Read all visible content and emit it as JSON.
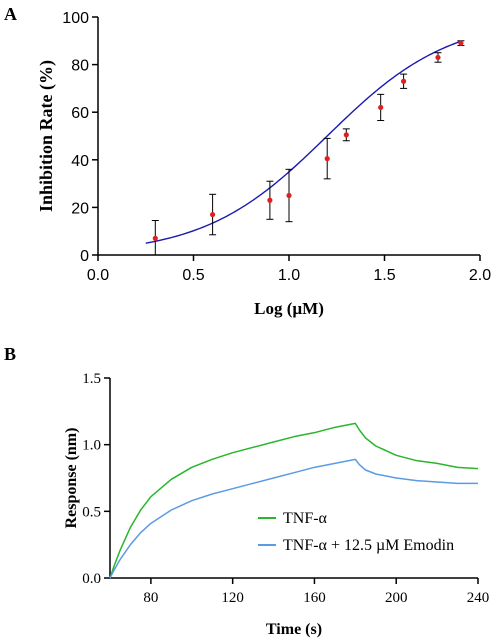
{
  "chart_data": [
    {
      "panel_label": "A",
      "type": "scatter",
      "xlabel": "Log (µM)",
      "ylabel": "Inhibition Rate (%)",
      "xlim": [
        0.0,
        2.0
      ],
      "ylim": [
        0,
        100
      ],
      "xticks": [
        "0.0",
        "0.5",
        "1.0",
        "1.5",
        "2.0"
      ],
      "yticks": [
        "0",
        "20",
        "40",
        "60",
        "80",
        "100"
      ],
      "grid": false,
      "points": {
        "x": [
          0.3,
          0.6,
          0.9,
          1.0,
          1.2,
          1.3,
          1.48,
          1.6,
          1.78,
          1.9
        ],
        "y": [
          7,
          17,
          23,
          25,
          40.5,
          50.5,
          62,
          73,
          83,
          89
        ],
        "err": [
          7.5,
          8.5,
          8,
          11,
          8.5,
          2.5,
          5.5,
          3,
          2,
          1
        ],
        "color": "#e02020"
      },
      "fit": {
        "model": "four-parameter logistic",
        "bottom": 0,
        "top": 100,
        "logIC50": 1.2,
        "hill": 1.35,
        "x_range": [
          0.25,
          1.9
        ],
        "color": "#1a1ab0"
      }
    },
    {
      "panel_label": "B",
      "type": "line",
      "xlabel": "Time (s)",
      "ylabel": "Response (nm)",
      "xlim": [
        60,
        240
      ],
      "ylim": [
        0.0,
        1.5
      ],
      "xticks": [
        "80",
        "120",
        "160",
        "200",
        "240"
      ],
      "yticks": [
        "0.0",
        "0.5",
        "1.0",
        "1.5"
      ],
      "grid": false,
      "legend_position": "lower-right",
      "series": [
        {
          "name": "TNF-α",
          "color": "#2ab62a",
          "x": [
            60,
            62,
            65,
            70,
            75,
            80,
            90,
            100,
            110,
            120,
            130,
            140,
            150,
            160,
            170,
            180,
            182,
            185,
            190,
            200,
            210,
            220,
            230,
            240
          ],
          "y": [
            0.0,
            0.09,
            0.21,
            0.38,
            0.51,
            0.61,
            0.74,
            0.83,
            0.89,
            0.94,
            0.98,
            1.02,
            1.06,
            1.09,
            1.13,
            1.16,
            1.11,
            1.05,
            0.99,
            0.92,
            0.88,
            0.86,
            0.83,
            0.82
          ]
        },
        {
          "name": "TNF-α + 12.5 µM Emodin",
          "color": "#5a9be6",
          "x": [
            60,
            62,
            65,
            70,
            75,
            80,
            90,
            100,
            110,
            120,
            130,
            140,
            150,
            160,
            170,
            180,
            182,
            185,
            190,
            200,
            210,
            220,
            230,
            240
          ],
          "y": [
            0.0,
            0.06,
            0.14,
            0.25,
            0.34,
            0.41,
            0.51,
            0.58,
            0.63,
            0.67,
            0.71,
            0.75,
            0.79,
            0.83,
            0.86,
            0.89,
            0.85,
            0.81,
            0.78,
            0.75,
            0.73,
            0.72,
            0.71,
            0.71
          ]
        }
      ]
    }
  ]
}
